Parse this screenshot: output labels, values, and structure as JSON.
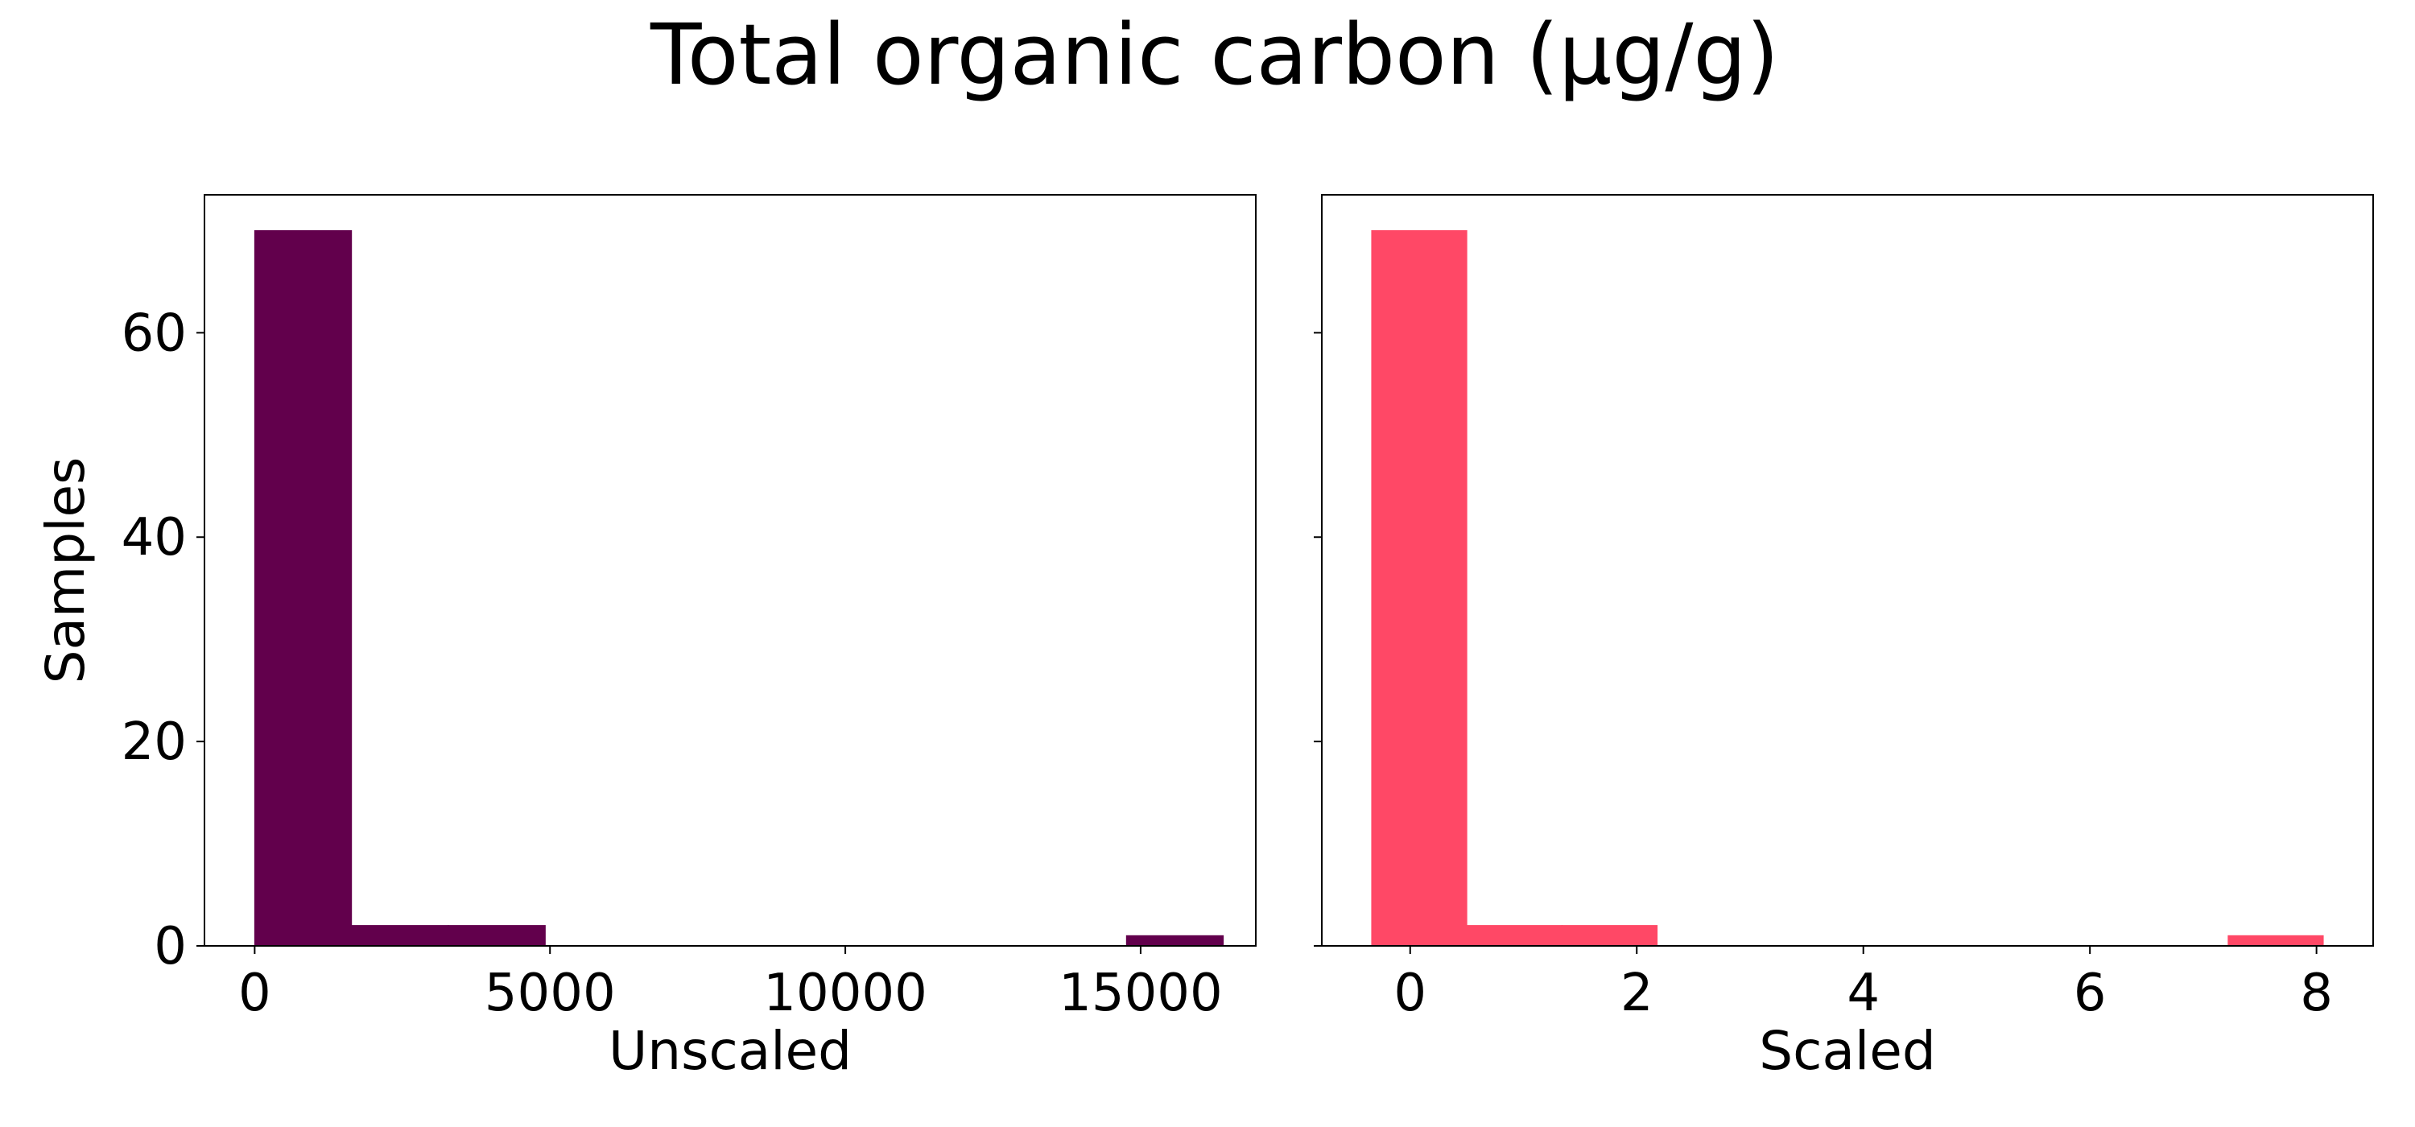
{
  "figure": {
    "title": "Total organic carbon (µg/g)"
  },
  "colors": {
    "unscaled_bar": "#62004c",
    "scaled_bar": "#ff4866",
    "axes": "#000000",
    "background": "#ffffff"
  },
  "chart_data": [
    {
      "type": "bar",
      "chart_kind": "histogram",
      "xlabel": "Unscaled",
      "ylabel": "Samples",
      "xlim": [
        -850,
        16950
      ],
      "ylim": [
        0,
        73.5
      ],
      "xticks": [
        0,
        5000,
        10000,
        15000
      ],
      "yticks": [
        0,
        20,
        40,
        60
      ],
      "bin_edges": [
        0,
        1640,
        3280,
        4920,
        6560,
        8200,
        9840,
        11480,
        13120,
        14760,
        16400
      ],
      "counts": [
        70,
        2,
        2,
        0,
        0,
        0,
        0,
        0,
        0,
        1
      ],
      "color": "#62004c",
      "grid": false
    },
    {
      "type": "bar",
      "chart_kind": "histogram",
      "xlabel": "Scaled",
      "ylabel": "",
      "xlim": [
        -0.78,
        8.5
      ],
      "ylim": [
        0,
        73.5
      ],
      "xticks": [
        0,
        2,
        4,
        6,
        8
      ],
      "yticks": [
        0,
        20,
        40,
        60
      ],
      "show_ytick_labels": false,
      "bin_edges": [
        -0.34,
        0.5,
        1.34,
        2.18,
        3.02,
        3.86,
        4.7,
        5.54,
        6.38,
        7.22,
        8.06
      ],
      "counts": [
        70,
        2,
        2,
        0,
        0,
        0,
        0,
        0,
        0,
        1
      ],
      "color": "#ff4866",
      "grid": false
    }
  ]
}
